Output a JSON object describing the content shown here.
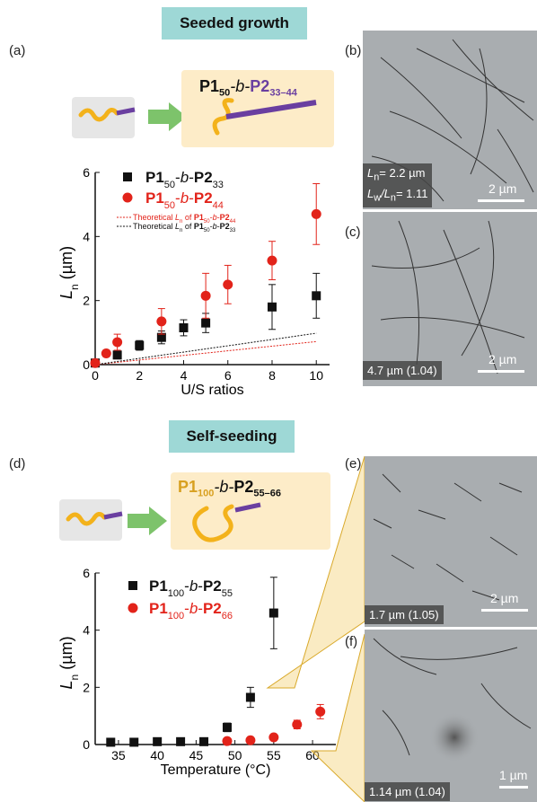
{
  "panels": {
    "a": "(a)",
    "b": "(b)",
    "c": "(c)",
    "d": "(d)",
    "e": "(e)",
    "f": "(f)"
  },
  "banners": {
    "top": "Seeded growth",
    "bottom": "Self-seeding"
  },
  "scheme_top": {
    "label_main": "P1",
    "label_sub1": "50",
    "label_mid": "-b-",
    "label_p2": "P2",
    "label_sub2": "33–44"
  },
  "scheme_bottom": {
    "label_main": "P1",
    "label_sub1": "100",
    "label_mid": "-b-",
    "label_p2": "P2",
    "label_sub2": "55–66"
  },
  "micrographs": {
    "b": {
      "caption_line1": "L",
      "caption_line1_sub": "n",
      "caption_line1_rest": "= 2.2 µm",
      "caption_line2": "L",
      "caption_line2_sub": "w",
      "caption_line2_mid": "/L",
      "caption_line2_sub2": "n",
      "caption_line2_rest": "= 1.11",
      "scale": "2 µm"
    },
    "c": {
      "caption": "4.7 µm (1.04)",
      "scale": "2 µm"
    },
    "e": {
      "caption": "1.7 µm (1.05)",
      "scale": "2 µm"
    },
    "f": {
      "caption": "1.14 µm (1.04)",
      "scale": "1 µm"
    }
  },
  "colors": {
    "black_series": "#111111",
    "red_series": "#e2231a",
    "banner": "#9ed8d6",
    "scheme_box": "#fdecc8",
    "core": "#f3b21b",
    "corona": "#6a3fa0",
    "arrow": "#7dc36b",
    "zoom": "#e8b84a"
  },
  "chart_data": [
    {
      "type": "scatter",
      "xlabel": "U/S ratios",
      "ylabel": "L",
      "ylabel_sub": "n",
      "ylabel_unit": " (µm)",
      "xlim": [
        0,
        10.6
      ],
      "ylim": [
        0,
        6
      ],
      "xticks": [
        "0",
        "2",
        "4",
        "6",
        "8",
        "10"
      ],
      "yticks": [
        "0",
        "2",
        "4",
        "6"
      ],
      "legend": "top-left",
      "series": [
        {
          "name": "P1₅₀-b-P2₃₃",
          "color": "#111111",
          "marker": "square",
          "x": [
            0,
            1,
            2,
            3,
            4,
            5,
            8,
            10
          ],
          "y": [
            0.05,
            0.3,
            0.6,
            0.85,
            1.15,
            1.3,
            1.8,
            2.15
          ],
          "err": [
            0.05,
            0.12,
            0.15,
            0.2,
            0.25,
            0.3,
            0.7,
            0.7
          ]
        },
        {
          "name": "P1₅₀-b-P2₄₄",
          "color": "#e2231a",
          "marker": "circle",
          "x": [
            0,
            0.5,
            1,
            3,
            5,
            6,
            8,
            10
          ],
          "y": [
            0.05,
            0.35,
            0.7,
            1.35,
            2.15,
            2.5,
            3.25,
            4.7
          ],
          "err": [
            0.05,
            0.1,
            0.25,
            0.4,
            0.7,
            0.6,
            0.6,
            0.95
          ]
        }
      ],
      "theory_lines": [
        {
          "name": "Theoretical Ln of P1₅₀-b-P2₄₄",
          "color": "#e2231a",
          "x": [
            0,
            10
          ],
          "y": [
            0,
            0.72
          ]
        },
        {
          "name": "Theoretical Ln of P1₅₀-b-P2₃₃",
          "color": "#111111",
          "x": [
            0,
            10
          ],
          "y": [
            0,
            0.98
          ]
        }
      ]
    },
    {
      "type": "scatter",
      "xlabel": "Temperature (°C)",
      "ylabel": "L",
      "ylabel_sub": "n",
      "ylabel_unit": " (µm)",
      "xlim": [
        32,
        63
      ],
      "ylim": [
        0,
        6
      ],
      "xticks": [
        "35",
        "40",
        "45",
        "50",
        "55",
        "60"
      ],
      "yticks": [
        "0",
        "2",
        "4",
        "6"
      ],
      "legend": "top-left",
      "series": [
        {
          "name": "P1₁₀₀-b-P2₅₅",
          "color": "#111111",
          "marker": "square",
          "x": [
            34,
            37,
            40,
            43,
            46,
            49,
            52,
            55
          ],
          "y": [
            0.08,
            0.08,
            0.1,
            0.1,
            0.1,
            0.6,
            1.65,
            4.6
          ],
          "err": [
            0,
            0,
            0,
            0,
            0,
            0.15,
            0.35,
            1.25
          ]
        },
        {
          "name": "P1₁₀₀-b-P2₆₆",
          "color": "#e2231a",
          "marker": "circle",
          "x": [
            49,
            52,
            55,
            58,
            61
          ],
          "y": [
            0.12,
            0.15,
            0.25,
            0.7,
            1.15
          ],
          "err": [
            0,
            0,
            0,
            0.15,
            0.25
          ]
        }
      ]
    }
  ]
}
